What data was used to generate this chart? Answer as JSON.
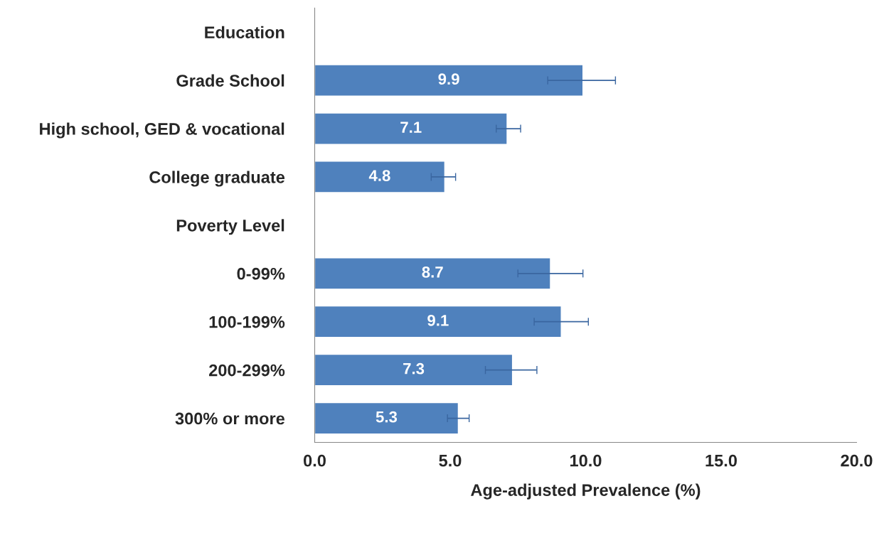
{
  "chart_data": {
    "type": "bar",
    "orientation": "horizontal",
    "xlabel": "Age-adjusted Prevalence (%)",
    "categories": [
      "Education",
      "Grade School",
      "High school, GED & vocational",
      "College graduate",
      "Poverty Level",
      "0-99%",
      "100-199%",
      "200-299%",
      "300% or more"
    ],
    "values": [
      null,
      9.9,
      7.1,
      4.8,
      null,
      8.7,
      9.1,
      7.3,
      5.3
    ],
    "errors": [
      null,
      [
        8.6,
        11.1
      ],
      [
        6.7,
        7.6
      ],
      [
        4.3,
        5.2
      ],
      null,
      [
        7.5,
        9.9
      ],
      [
        8.1,
        10.1
      ],
      [
        6.3,
        8.2
      ],
      [
        4.9,
        5.7
      ]
    ],
    "color": "#4f81bd",
    "xlim": [
      0,
      20
    ],
    "xticks": [
      {
        "value": 0,
        "label": "0.0"
      },
      {
        "value": 5,
        "label": "5.0"
      },
      {
        "value": 10,
        "label": "10.0"
      },
      {
        "value": 15,
        "label": "15.0"
      },
      {
        "value": 20,
        "label": "20.0"
      }
    ],
    "data_labels": true,
    "grid": false,
    "legend": false
  }
}
